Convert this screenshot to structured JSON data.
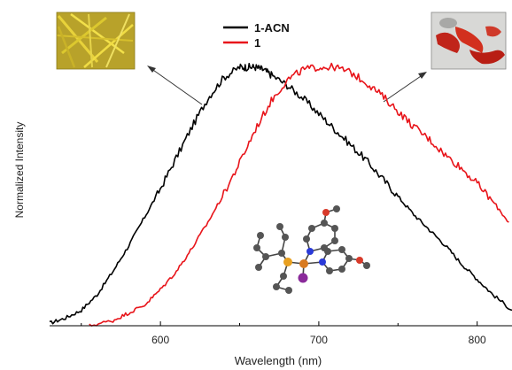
{
  "chart_data": {
    "type": "line",
    "title": "",
    "xlabel": "Wavelength (nm)",
    "ylabel": "Normalized Intensity",
    "xlim": [
      530,
      822
    ],
    "ylim": [
      0,
      1.02
    ],
    "x_ticks": [
      600,
      700,
      800
    ],
    "y_ticks": [],
    "grid": false,
    "legend": {
      "position": "top-center",
      "entries": [
        "1-ACN",
        "1"
      ]
    },
    "series": [
      {
        "name": "1-ACN",
        "color": "#000000",
        "x": [
          530,
          540,
          550,
          560,
          570,
          580,
          590,
          600,
          610,
          620,
          630,
          640,
          650,
          655,
          660,
          665,
          670,
          680,
          690,
          700,
          710,
          720,
          730,
          740,
          750,
          760,
          770,
          780,
          790,
          800,
          810,
          822
        ],
        "y": [
          0.01,
          0.03,
          0.06,
          0.12,
          0.21,
          0.31,
          0.42,
          0.53,
          0.65,
          0.77,
          0.88,
          0.96,
          1.0,
          1.0,
          1.0,
          0.99,
          0.97,
          0.93,
          0.88,
          0.82,
          0.76,
          0.7,
          0.64,
          0.57,
          0.5,
          0.43,
          0.37,
          0.31,
          0.24,
          0.18,
          0.12,
          0.06
        ]
      },
      {
        "name": "1",
        "color": "#e8141a",
        "x": [
          555,
          570,
          580,
          590,
          600,
          610,
          620,
          630,
          640,
          650,
          660,
          670,
          680,
          690,
          700,
          710,
          720,
          730,
          740,
          750,
          760,
          770,
          780,
          790,
          800,
          810,
          820
        ],
        "y": [
          0.0,
          0.02,
          0.05,
          0.08,
          0.14,
          0.21,
          0.3,
          0.4,
          0.51,
          0.63,
          0.76,
          0.87,
          0.95,
          0.99,
          1.0,
          1.0,
          0.98,
          0.94,
          0.89,
          0.83,
          0.77,
          0.72,
          0.66,
          0.61,
          0.55,
          0.48,
          0.4
        ]
      }
    ]
  }
}
